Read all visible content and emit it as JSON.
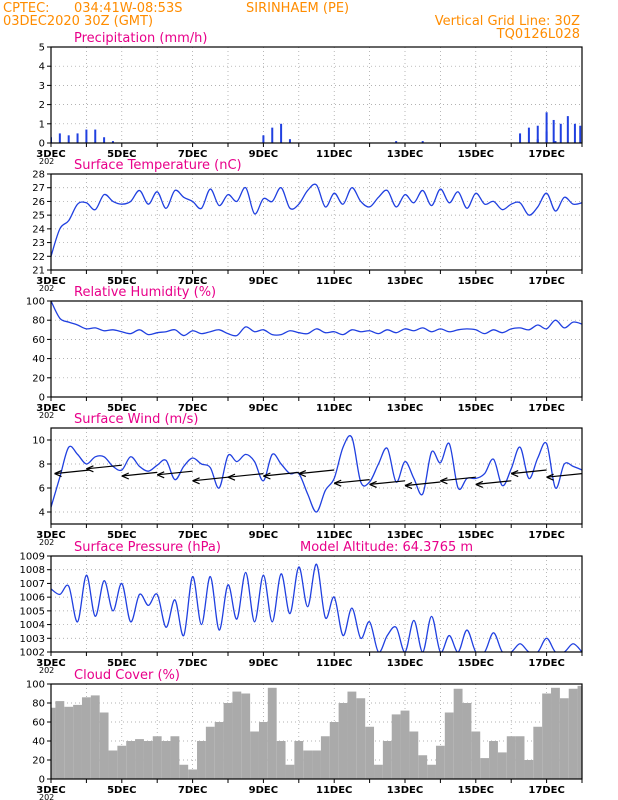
{
  "header": {
    "source": "CPTEC:",
    "coords": "034:41W-08:53S",
    "station": "SIRINHAEM (PE)",
    "date": "03DEC2020 30Z (GMT)",
    "grid_note": "Vertical Grid Line: 30Z",
    "code": "TQ0126L028"
  },
  "colors": {
    "header": "#ff8c00",
    "title": "#e8008a",
    "series": "#2040e0",
    "cloud": "#aaaaaa",
    "wind_arrow": "#000000",
    "grid": "#999999"
  },
  "x_axis": {
    "start": "3DEC",
    "end": "18DEC",
    "tick_labels": [
      "3DEC",
      "5DEC",
      "7DEC",
      "9DEC",
      "11DEC",
      "13DEC",
      "15DEC",
      "17DEC"
    ],
    "tick_days": [
      0,
      2,
      4,
      6,
      8,
      10,
      12,
      14
    ],
    "stub": "202"
  },
  "chart_data": [
    {
      "type": "bar",
      "title": "Precipitation (mm/h)",
      "ylim": [
        0,
        5
      ],
      "yticks": [
        0,
        1,
        2,
        3,
        4,
        5
      ],
      "grid": true,
      "x_days": [
        0.0,
        0.25,
        0.5,
        0.75,
        1.0,
        1.25,
        1.5,
        1.75,
        2.0,
        2.25,
        2.5,
        2.75,
        3.0,
        3.25,
        3.5,
        3.75,
        4.0,
        4.25,
        4.5,
        4.75,
        5.0,
        5.25,
        5.5,
        5.75,
        6.0,
        6.25,
        6.5,
        6.75,
        7.0,
        7.25,
        7.5,
        7.75,
        8.0,
        8.25,
        8.5,
        8.75,
        9.0,
        9.25,
        9.5,
        9.75,
        10.0,
        10.25,
        10.5,
        10.75,
        11.0,
        11.25,
        11.5,
        11.75,
        12.0,
        12.25,
        12.5,
        12.75,
        13.0,
        13.25,
        13.5,
        13.75,
        14.0,
        14.25,
        14.5,
        14.75,
        15.0
      ],
      "values": [
        0.3,
        0.5,
        0.4,
        0.5,
        0.7,
        0.7,
        0.3,
        0.1,
        0,
        0,
        0,
        0,
        0,
        0,
        0,
        0,
        0,
        0,
        0,
        0,
        0,
        0,
        0,
        0,
        0.4,
        0.8,
        1.0,
        0.2,
        0,
        0,
        0,
        0,
        0,
        0,
        0,
        0,
        0,
        0,
        0,
        0.1,
        0,
        0,
        0.1,
        0,
        0,
        0,
        0,
        0,
        0,
        0,
        0,
        0,
        0,
        0,
        0,
        0.2,
        0.6,
        0.1,
        0,
        0,
        0
      ],
      "extra_bars": [
        {
          "x": 13.25,
          "value": 0.5
        },
        {
          "x": 13.5,
          "value": 0.8
        },
        {
          "x": 13.75,
          "value": 0.9
        },
        {
          "x": 14.0,
          "value": 1.6
        },
        {
          "x": 14.2,
          "value": 1.2
        },
        {
          "x": 14.4,
          "value": 1.0
        },
        {
          "x": 14.6,
          "value": 1.4
        },
        {
          "x": 14.8,
          "value": 1.0
        },
        {
          "x": 14.95,
          "value": 0.9
        }
      ]
    },
    {
      "type": "line",
      "title": "Surface Temperature (nC)",
      "ylim": [
        21,
        28
      ],
      "yticks": [
        21,
        22,
        23,
        24,
        25,
        26,
        27,
        28
      ],
      "grid": true,
      "x_days": [
        0.0,
        0.25,
        0.5,
        0.75,
        1.0,
        1.25,
        1.5,
        1.75,
        2.0,
        2.25,
        2.5,
        2.75,
        3.0,
        3.25,
        3.5,
        3.75,
        4.0,
        4.25,
        4.5,
        4.75,
        5.0,
        5.25,
        5.5,
        5.75,
        6.0,
        6.25,
        6.5,
        6.75,
        7.0,
        7.25,
        7.5,
        7.75,
        8.0,
        8.25,
        8.5,
        8.75,
        9.0,
        9.25,
        9.5,
        9.75,
        10.0,
        10.25,
        10.5,
        10.75,
        11.0,
        11.25,
        11.5,
        11.75,
        12.0,
        12.25,
        12.5,
        12.75,
        13.0,
        13.25,
        13.5,
        13.75,
        14.0,
        14.25,
        14.5,
        14.75,
        15.0
      ],
      "values": [
        22.0,
        24.0,
        24.6,
        25.8,
        25.9,
        25.4,
        26.5,
        26.0,
        25.8,
        26.0,
        26.8,
        25.8,
        26.7,
        25.5,
        26.8,
        26.3,
        26.0,
        25.5,
        26.9,
        25.7,
        26.5,
        26.0,
        27.0,
        25.1,
        26.2,
        26.0,
        27.0,
        25.5,
        25.8,
        26.8,
        27.2,
        25.6,
        26.6,
        25.8,
        27.0,
        26.0,
        25.6,
        26.3,
        26.8,
        25.6,
        26.5,
        25.9,
        26.8,
        25.7,
        26.9,
        25.9,
        26.7,
        25.5,
        26.6,
        25.8,
        26.0,
        25.4,
        25.8,
        25.9,
        25.0,
        25.6,
        26.6,
        25.3,
        26.3,
        25.8,
        25.9
      ]
    },
    {
      "type": "line",
      "title": "Relative Humidity (%)",
      "ylim": [
        0,
        100
      ],
      "yticks": [
        0,
        20,
        40,
        60,
        80,
        100
      ],
      "grid": true,
      "x_days": [
        0.0,
        0.25,
        0.5,
        0.75,
        1.0,
        1.25,
        1.5,
        1.75,
        2.0,
        2.25,
        2.5,
        2.75,
        3.0,
        3.25,
        3.5,
        3.75,
        4.0,
        4.25,
        4.5,
        4.75,
        5.0,
        5.25,
        5.5,
        5.75,
        6.0,
        6.25,
        6.5,
        6.75,
        7.0,
        7.25,
        7.5,
        7.75,
        8.0,
        8.25,
        8.5,
        8.75,
        9.0,
        9.25,
        9.5,
        9.75,
        10.0,
        10.25,
        10.5,
        10.75,
        11.0,
        11.25,
        11.5,
        11.75,
        12.0,
        12.25,
        12.5,
        12.75,
        13.0,
        13.25,
        13.5,
        13.75,
        14.0,
        14.25,
        14.5,
        14.75,
        15.0
      ],
      "values": [
        100,
        82,
        78,
        75,
        71,
        72,
        69,
        70,
        68,
        66,
        70,
        65,
        67,
        68,
        70,
        64,
        69,
        66,
        68,
        70,
        66,
        64,
        73,
        68,
        70,
        65,
        65,
        69,
        67,
        66,
        71,
        67,
        68,
        65,
        70,
        68,
        69,
        66,
        70,
        67,
        71,
        69,
        72,
        68,
        71,
        68,
        70,
        71,
        70,
        66,
        70,
        67,
        71,
        72,
        70,
        75,
        71,
        80,
        72,
        78,
        76
      ]
    },
    {
      "type": "line",
      "title": "Surface Wind (m/s)",
      "ylim": [
        3,
        11
      ],
      "yticks": [
        4,
        6,
        8,
        10
      ],
      "grid": true,
      "x_days": [
        0.0,
        0.25,
        0.5,
        0.75,
        1.0,
        1.25,
        1.5,
        1.75,
        2.0,
        2.25,
        2.5,
        2.75,
        3.0,
        3.25,
        3.5,
        3.75,
        4.0,
        4.25,
        4.5,
        4.75,
        5.0,
        5.25,
        5.5,
        5.75,
        6.0,
        6.25,
        6.5,
        6.75,
        7.0,
        7.25,
        7.5,
        7.75,
        8.0,
        8.25,
        8.5,
        8.75,
        9.0,
        9.25,
        9.5,
        9.75,
        10.0,
        10.25,
        10.5,
        10.75,
        11.0,
        11.25,
        11.5,
        11.75,
        12.0,
        12.25,
        12.5,
        12.75,
        13.0,
        13.25,
        13.5,
        13.75,
        14.0,
        14.25,
        14.5,
        14.75,
        15.0
      ],
      "values": [
        4.4,
        6.9,
        9.4,
        8.8,
        8.0,
        8.6,
        8.6,
        7.8,
        7.5,
        8.6,
        7.8,
        7.4,
        7.9,
        8.3,
        6.7,
        7.8,
        8.5,
        8.0,
        7.7,
        6.0,
        8.7,
        8.2,
        8.8,
        8.2,
        6.6,
        8.8,
        8.0,
        7.2,
        7.2,
        5.5,
        4.0,
        5.8,
        6.8,
        9.4,
        10.2,
        6.5,
        6.5,
        8.0,
        9.3,
        6.5,
        8.2,
        6.8,
        5.5,
        9.0,
        8.1,
        9.7,
        6.0,
        6.8,
        6.8,
        7.2,
        8.4,
        6.2,
        7.6,
        9.4,
        6.8,
        8.5,
        9.7,
        6.0,
        8.0,
        7.8,
        7.5
      ],
      "wind_vectors": [
        {
          "x": 0.1,
          "y": 7.2
        },
        {
          "x": 1.0,
          "y": 7.6
        },
        {
          "x": 2.0,
          "y": 7.0
        },
        {
          "x": 3.0,
          "y": 7.1
        },
        {
          "x": 4.0,
          "y": 6.6
        },
        {
          "x": 5.0,
          "y": 6.9
        },
        {
          "x": 6.0,
          "y": 7.0
        },
        {
          "x": 7.0,
          "y": 7.2
        },
        {
          "x": 8.0,
          "y": 6.4
        },
        {
          "x": 9.0,
          "y": 6.3
        },
        {
          "x": 10.0,
          "y": 6.2
        },
        {
          "x": 11.0,
          "y": 6.6
        },
        {
          "x": 12.0,
          "y": 6.3
        },
        {
          "x": 13.0,
          "y": 7.2
        },
        {
          "x": 14.0,
          "y": 6.9
        }
      ]
    },
    {
      "type": "line",
      "title": "Surface Pressure (hPa)",
      "annotation": "Model Altitude: 64.3765 m",
      "ylim": [
        1002,
        1009
      ],
      "yticks": [
        1002,
        1003,
        1004,
        1005,
        1006,
        1007,
        1008,
        1009
      ],
      "grid": true,
      "x_days": [
        0.0,
        0.25,
        0.5,
        0.75,
        1.0,
        1.25,
        1.5,
        1.75,
        2.0,
        2.25,
        2.5,
        2.75,
        3.0,
        3.25,
        3.5,
        3.75,
        4.0,
        4.25,
        4.5,
        4.75,
        5.0,
        5.25,
        5.5,
        5.75,
        6.0,
        6.25,
        6.5,
        6.75,
        7.0,
        7.25,
        7.5,
        7.75,
        8.0,
        8.25,
        8.5,
        8.75,
        9.0,
        9.25,
        9.5,
        9.75,
        10.0,
        10.25,
        10.5,
        10.75,
        11.0,
        11.25,
        11.5,
        11.75,
        12.0,
        12.25,
        12.5,
        12.75,
        13.0,
        13.25,
        13.5,
        13.75,
        14.0,
        14.25,
        14.5,
        14.75,
        15.0
      ],
      "values": [
        1006.6,
        1006.2,
        1006.8,
        1004.2,
        1007.6,
        1004.6,
        1007.2,
        1005.0,
        1007.0,
        1004.2,
        1006.2,
        1005.4,
        1006.2,
        1003.8,
        1005.8,
        1003.2,
        1007.5,
        1004.0,
        1007.5,
        1003.6,
        1006.9,
        1004.4,
        1007.8,
        1004.2,
        1007.6,
        1004.2,
        1007.7,
        1004.8,
        1008.2,
        1005.3,
        1008.4,
        1004.5,
        1006.0,
        1003.2,
        1005.2,
        1003.0,
        1004.2,
        1002.0,
        1003.2,
        1003.8,
        1002.0,
        1004.3,
        1002.0,
        1004.6,
        1002.0,
        1003.2,
        1002.0,
        1003.6,
        1002.0,
        1002.0,
        1003.4,
        1002.0,
        1002.0,
        1002.6,
        1002.0,
        1002.0,
        1003.0,
        1002.0,
        1002.0,
        1002.6,
        1002.0
      ]
    },
    {
      "type": "bar",
      "title": "Cloud Cover (%)",
      "ylim": [
        0,
        100
      ],
      "yticks": [
        0,
        20,
        40,
        60,
        80,
        100
      ],
      "grid": true,
      "x_days": [
        0.0,
        0.25,
        0.5,
        0.75,
        1.0,
        1.25,
        1.5,
        1.75,
        2.0,
        2.25,
        2.5,
        2.75,
        3.0,
        3.25,
        3.5,
        3.75,
        4.0,
        4.25,
        4.5,
        4.75,
        5.0,
        5.25,
        5.5,
        5.75,
        6.0,
        6.25,
        6.5,
        6.75,
        7.0,
        7.25,
        7.5,
        7.75,
        8.0,
        8.25,
        8.5,
        8.75,
        9.0,
        9.25,
        9.5,
        9.75,
        10.0,
        10.25,
        10.5,
        10.75,
        11.0,
        11.25,
        11.5,
        11.75,
        12.0,
        12.25,
        12.5,
        12.75,
        13.0,
        13.25,
        13.5,
        13.75,
        14.0,
        14.25,
        14.5,
        14.75,
        15.0
      ],
      "values": [
        75,
        82,
        76,
        78,
        86,
        88,
        70,
        30,
        35,
        40,
        42,
        40,
        45,
        40,
        45,
        15,
        10,
        40,
        55,
        60,
        80,
        92,
        90,
        50,
        60,
        96,
        40,
        15,
        40,
        30,
        30,
        45,
        60,
        80,
        92,
        85,
        55,
        15,
        40,
        68,
        72,
        50,
        25,
        15,
        35,
        70,
        95,
        80,
        50,
        22,
        40,
        28,
        45,
        45,
        20,
        55,
        90,
        96,
        85,
        95,
        98
      ]
    }
  ]
}
